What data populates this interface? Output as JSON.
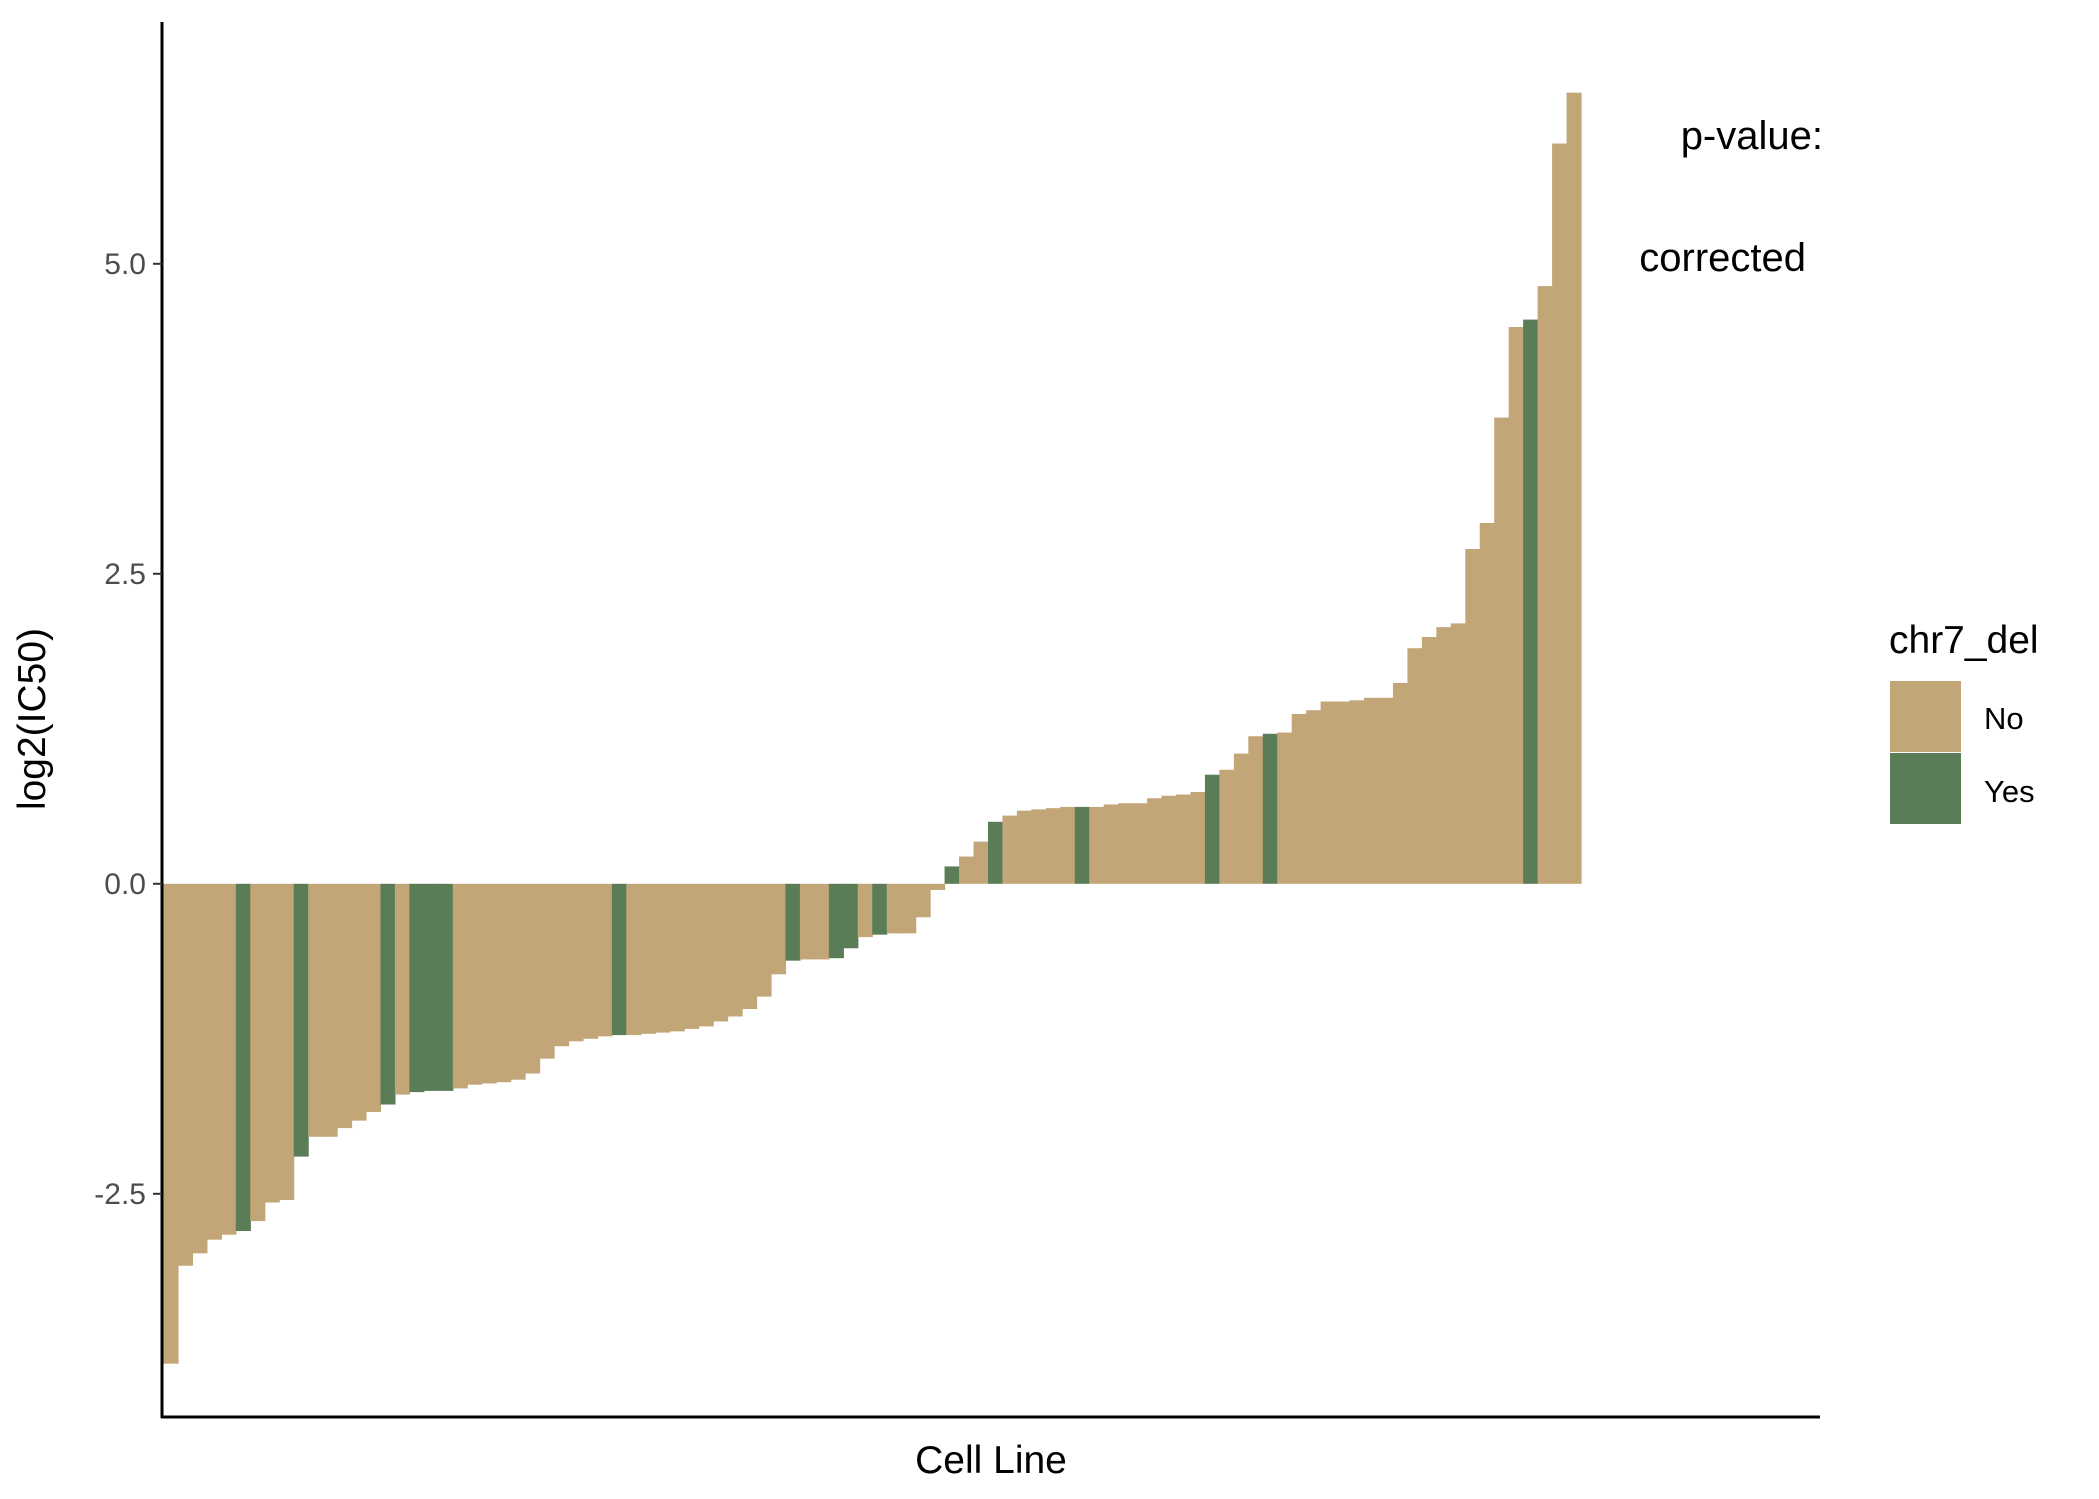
{
  "chart_data": {
    "type": "bar",
    "title": "",
    "xlabel": "Cell Line",
    "ylabel": "log2(IC50)",
    "ylim": [
      -4.3,
      6.95
    ],
    "yticks": [
      -2.5,
      0.0,
      2.5,
      5.0
    ],
    "ytick_labels": [
      "-2.5",
      "0.0",
      "2.5",
      "5.0"
    ],
    "grid": false,
    "annotations": [
      "p-value:",
      "corrected"
    ],
    "colors": {
      "No": "#c3a678",
      "Yes": "#5a7d57"
    },
    "legend": {
      "title": "chr7_del",
      "position": "right",
      "entries": [
        {
          "label": "No",
          "color": "#c3a678"
        },
        {
          "label": "Yes",
          "color": "#5a7d57"
        }
      ]
    },
    "values": [
      -3.87,
      -3.08,
      -2.98,
      -2.87,
      -2.83,
      -2.8,
      -2.72,
      -2.57,
      -2.55,
      -2.2,
      -2.04,
      -2.04,
      -1.97,
      -1.91,
      -1.84,
      -1.78,
      -1.7,
      -1.68,
      -1.67,
      -1.67,
      -1.65,
      -1.62,
      -1.61,
      -1.6,
      -1.58,
      -1.53,
      -1.41,
      -1.31,
      -1.27,
      -1.25,
      -1.23,
      -1.22,
      -1.22,
      -1.21,
      -1.2,
      -1.19,
      -1.17,
      -1.15,
      -1.11,
      -1.07,
      -1.01,
      -0.91,
      -0.73,
      -0.62,
      -0.61,
      -0.61,
      -0.6,
      -0.52,
      -0.43,
      -0.41,
      -0.4,
      -0.4,
      -0.27,
      -0.05,
      0.14,
      0.22,
      0.34,
      0.5,
      0.55,
      0.59,
      0.6,
      0.61,
      0.62,
      0.62,
      0.62,
      0.64,
      0.65,
      0.65,
      0.69,
      0.71,
      0.72,
      0.74,
      0.88,
      0.92,
      1.05,
      1.19,
      1.21,
      1.22,
      1.37,
      1.4,
      1.47,
      1.47,
      1.48,
      1.5,
      1.5,
      1.62,
      1.9,
      1.99,
      2.07,
      2.1,
      2.7,
      2.91,
      3.76,
      4.49,
      4.55,
      4.82,
      5.97,
      6.38
    ],
    "groups": [
      "No",
      "No",
      "No",
      "No",
      "No",
      "Yes",
      "No",
      "No",
      "No",
      "Yes",
      "No",
      "No",
      "No",
      "No",
      "No",
      "Yes",
      "No",
      "Yes",
      "Yes",
      "Yes",
      "No",
      "No",
      "No",
      "No",
      "No",
      "No",
      "No",
      "No",
      "No",
      "No",
      "No",
      "Yes",
      "No",
      "No",
      "No",
      "No",
      "No",
      "No",
      "No",
      "No",
      "No",
      "No",
      "No",
      "Yes",
      "No",
      "No",
      "Yes",
      "Yes",
      "No",
      "Yes",
      "No",
      "No",
      "No",
      "No",
      "Yes",
      "No",
      "No",
      "Yes",
      "No",
      "No",
      "No",
      "No",
      "No",
      "Yes",
      "No",
      "No",
      "No",
      "No",
      "No",
      "No",
      "No",
      "No",
      "Yes",
      "No",
      "No",
      "No",
      "Yes",
      "No",
      "No",
      "No",
      "No",
      "No",
      "No",
      "No",
      "No",
      "No",
      "No",
      "No",
      "No",
      "No",
      "No",
      "No",
      "No",
      "No",
      "Yes",
      "No",
      "No",
      "No"
    ]
  }
}
